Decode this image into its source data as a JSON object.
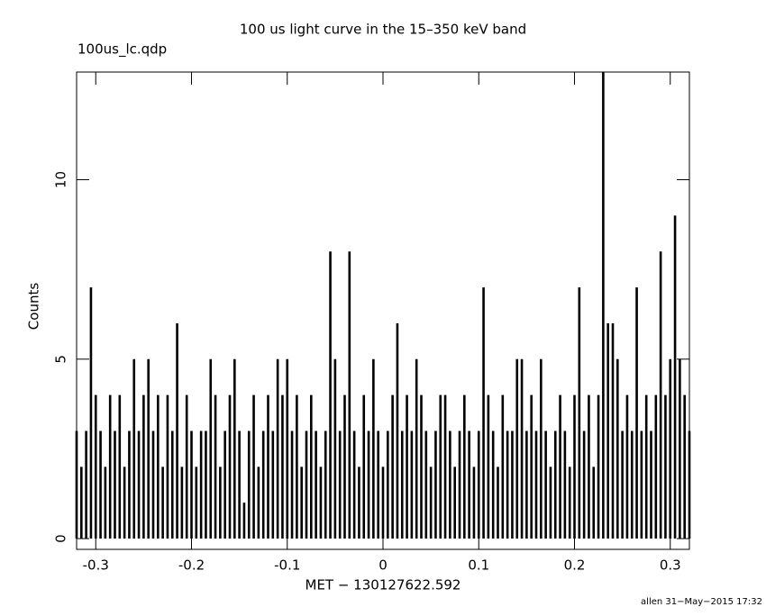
{
  "chart_data": {
    "type": "spike",
    "title": "100 us light curve in the 15–350 keV band",
    "subtitle": "100us_lc.qdp",
    "x_label": "MET − 130127622.592",
    "y_label": "Counts",
    "footer": "allen 31−May−2015 17:32",
    "color": "#000000",
    "xlim": [
      -0.32,
      0.32
    ],
    "ylim": [
      -0.3,
      13.0
    ],
    "xticks": [
      -0.3,
      -0.2,
      -0.1,
      0,
      0.1,
      0.2,
      0.3
    ],
    "yticks": [
      0,
      5,
      10
    ],
    "x": [
      -0.32,
      -0.315,
      -0.31,
      -0.305,
      -0.3,
      -0.295,
      -0.29,
      -0.285,
      -0.28,
      -0.275,
      -0.27,
      -0.265,
      -0.26,
      -0.255,
      -0.25,
      -0.245,
      -0.24,
      -0.235,
      -0.23,
      -0.225,
      -0.22,
      -0.215,
      -0.21,
      -0.205,
      -0.2,
      -0.195,
      -0.19,
      -0.185,
      -0.18,
      -0.175,
      -0.17,
      -0.165,
      -0.16,
      -0.155,
      -0.15,
      -0.145,
      -0.14,
      -0.135,
      -0.13,
      -0.125,
      -0.12,
      -0.115,
      -0.11,
      -0.105,
      -0.1,
      -0.095,
      -0.09,
      -0.085,
      -0.08,
      -0.075,
      -0.07,
      -0.065,
      -0.06,
      -0.055,
      -0.05,
      -0.045,
      -0.04,
      -0.035,
      -0.03,
      -0.025,
      -0.02,
      -0.015,
      -0.01,
      -0.005,
      0,
      0.005,
      0.01,
      0.015,
      0.02,
      0.025,
      0.03,
      0.035,
      0.04,
      0.045,
      0.05,
      0.055,
      0.06,
      0.065,
      0.07,
      0.075,
      0.08,
      0.085,
      0.09,
      0.095,
      0.1,
      0.105,
      0.11,
      0.115,
      0.12,
      0.125,
      0.13,
      0.135,
      0.14,
      0.145,
      0.15,
      0.155,
      0.16,
      0.165,
      0.17,
      0.175,
      0.18,
      0.185,
      0.19,
      0.195,
      0.2,
      0.205,
      0.21,
      0.215,
      0.22,
      0.225,
      0.23,
      0.235,
      0.24,
      0.245,
      0.25,
      0.255,
      0.26,
      0.265,
      0.27,
      0.275,
      0.28,
      0.285,
      0.29,
      0.295,
      0.3,
      0.305,
      0.31,
      0.315,
      0.32
    ],
    "values": [
      3,
      2,
      3,
      7,
      4,
      3,
      2,
      4,
      3,
      4,
      2,
      3,
      5,
      3,
      4,
      5,
      3,
      4,
      2,
      4,
      3,
      6,
      2,
      4,
      3,
      2,
      3,
      3,
      5,
      4,
      2,
      3,
      4,
      5,
      3,
      1,
      3,
      4,
      2,
      3,
      4,
      3,
      5,
      4,
      5,
      3,
      4,
      2,
      3,
      4,
      3,
      2,
      3,
      8,
      5,
      3,
      4,
      8,
      3,
      2,
      4,
      3,
      5,
      3,
      2,
      3,
      4,
      6,
      3,
      4,
      3,
      5,
      4,
      3,
      2,
      3,
      4,
      4,
      3,
      2,
      3,
      4,
      3,
      2,
      3,
      7,
      4,
      3,
      2,
      4,
      3,
      3,
      5,
      5,
      3,
      4,
      3,
      5,
      3,
      2,
      3,
      4,
      3,
      2,
      4,
      7,
      3,
      4,
      2,
      4,
      13,
      6,
      6,
      5,
      3,
      4,
      3,
      7,
      3,
      4,
      3,
      4,
      8,
      4,
      5,
      9,
      5,
      4,
      3
    ]
  }
}
